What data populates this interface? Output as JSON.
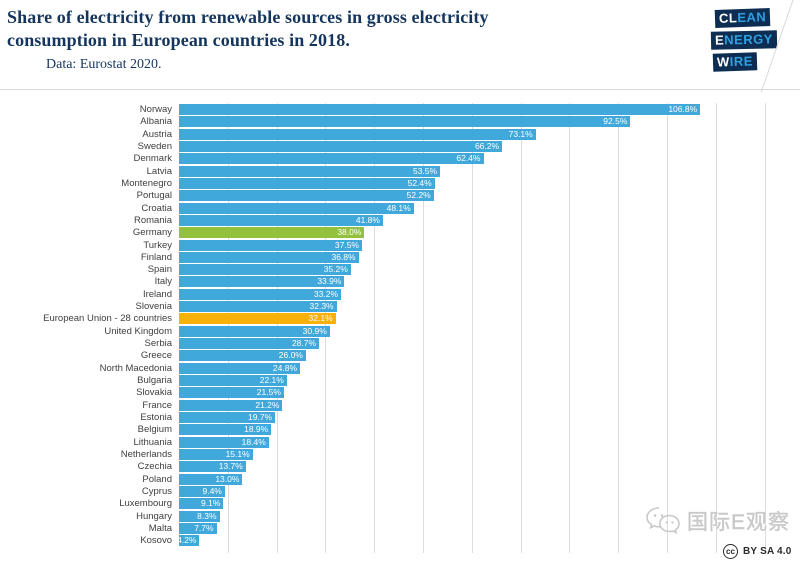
{
  "header": {
    "title_line1": "Share of electricity from renewable sources in gross electricity",
    "title_line2": "consumption in European countries in 2018.",
    "subtitle": "Data: Eurostat 2020.",
    "logo_rows": [
      {
        "white": "CL",
        "blue": "EAN"
      },
      {
        "white": "E",
        "blue": "NERGY"
      },
      {
        "white": "W",
        "blue": "IRE"
      }
    ]
  },
  "chart_data": {
    "type": "bar",
    "orientation": "horizontal",
    "title": "Share of electricity from renewable sources in gross electricity consumption in European countries in 2018.",
    "data_source": "Data: Eurostat 2020.",
    "unit": "%",
    "xlim": [
      0,
      120
    ],
    "gridline_interval": 10,
    "grid": true,
    "legend": "none",
    "categories": [
      "Norway",
      "Albania",
      "Austria",
      "Sweden",
      "Denmark",
      "Latvia",
      "Montenegro",
      "Portugal",
      "Croatia",
      "Romania",
      "Germany",
      "Turkey",
      "Finland",
      "Spain",
      "Italy",
      "Ireland",
      "Slovenia",
      "European Union - 28 countries",
      "United Kingdom",
      "Serbia",
      "Greece",
      "North Macedonia",
      "Bulgaria",
      "Slovakia",
      "France",
      "Estonia",
      "Belgium",
      "Lithuania",
      "Netherlands",
      "Czechia",
      "Poland",
      "Cyprus",
      "Luxembourg",
      "Hungary",
      "Malta",
      "Kosovo"
    ],
    "values": [
      106.8,
      92.5,
      73.1,
      66.2,
      62.4,
      53.5,
      52.4,
      52.2,
      48.1,
      41.8,
      38.0,
      37.5,
      36.8,
      35.2,
      33.9,
      33.2,
      32.3,
      32.1,
      30.9,
      28.7,
      26.0,
      24.8,
      22.1,
      21.5,
      21.2,
      19.7,
      18.9,
      18.4,
      15.1,
      13.7,
      13.0,
      9.4,
      9.1,
      8.3,
      7.7,
      4.2
    ],
    "value_labels": [
      "106.8%",
      "92.5%",
      "73.1%",
      "66.2%",
      "62.4%",
      "53.5%",
      "52.4%",
      "52.2%",
      "48.1%",
      "41.8%",
      "38.0%",
      "37.5%",
      "36.8%",
      "35.2%",
      "33.9%",
      "33.2%",
      "32.3%",
      "32.1%",
      "30.9%",
      "28.7%",
      "26.0%",
      "24.8%",
      "22.1%",
      "21.5%",
      "21.2%",
      "19.7%",
      "18.9%",
      "18.4%",
      "15.1%",
      "13.7%",
      "13.0%",
      "9.4%",
      "9.1%",
      "8.3%",
      "7.7%",
      "4.2%"
    ],
    "colors": {
      "bar": "#41a8db",
      "germany_highlight": "#94c13d",
      "eu_highlight": "#f7b109",
      "gridline": "#dcdcdc",
      "value_label": "#ffffff",
      "category_label": "#404040",
      "title": "#14365e"
    },
    "highlights": [
      {
        "index": 10,
        "category": "Germany",
        "color_key": "germany_highlight"
      },
      {
        "index": 17,
        "category": "European Union - 28 countries",
        "color_key": "eu_highlight"
      }
    ]
  },
  "watermark": {
    "brand": "国际E观察",
    "cc_text": "cc",
    "license_label": "BY SA 4.0"
  }
}
